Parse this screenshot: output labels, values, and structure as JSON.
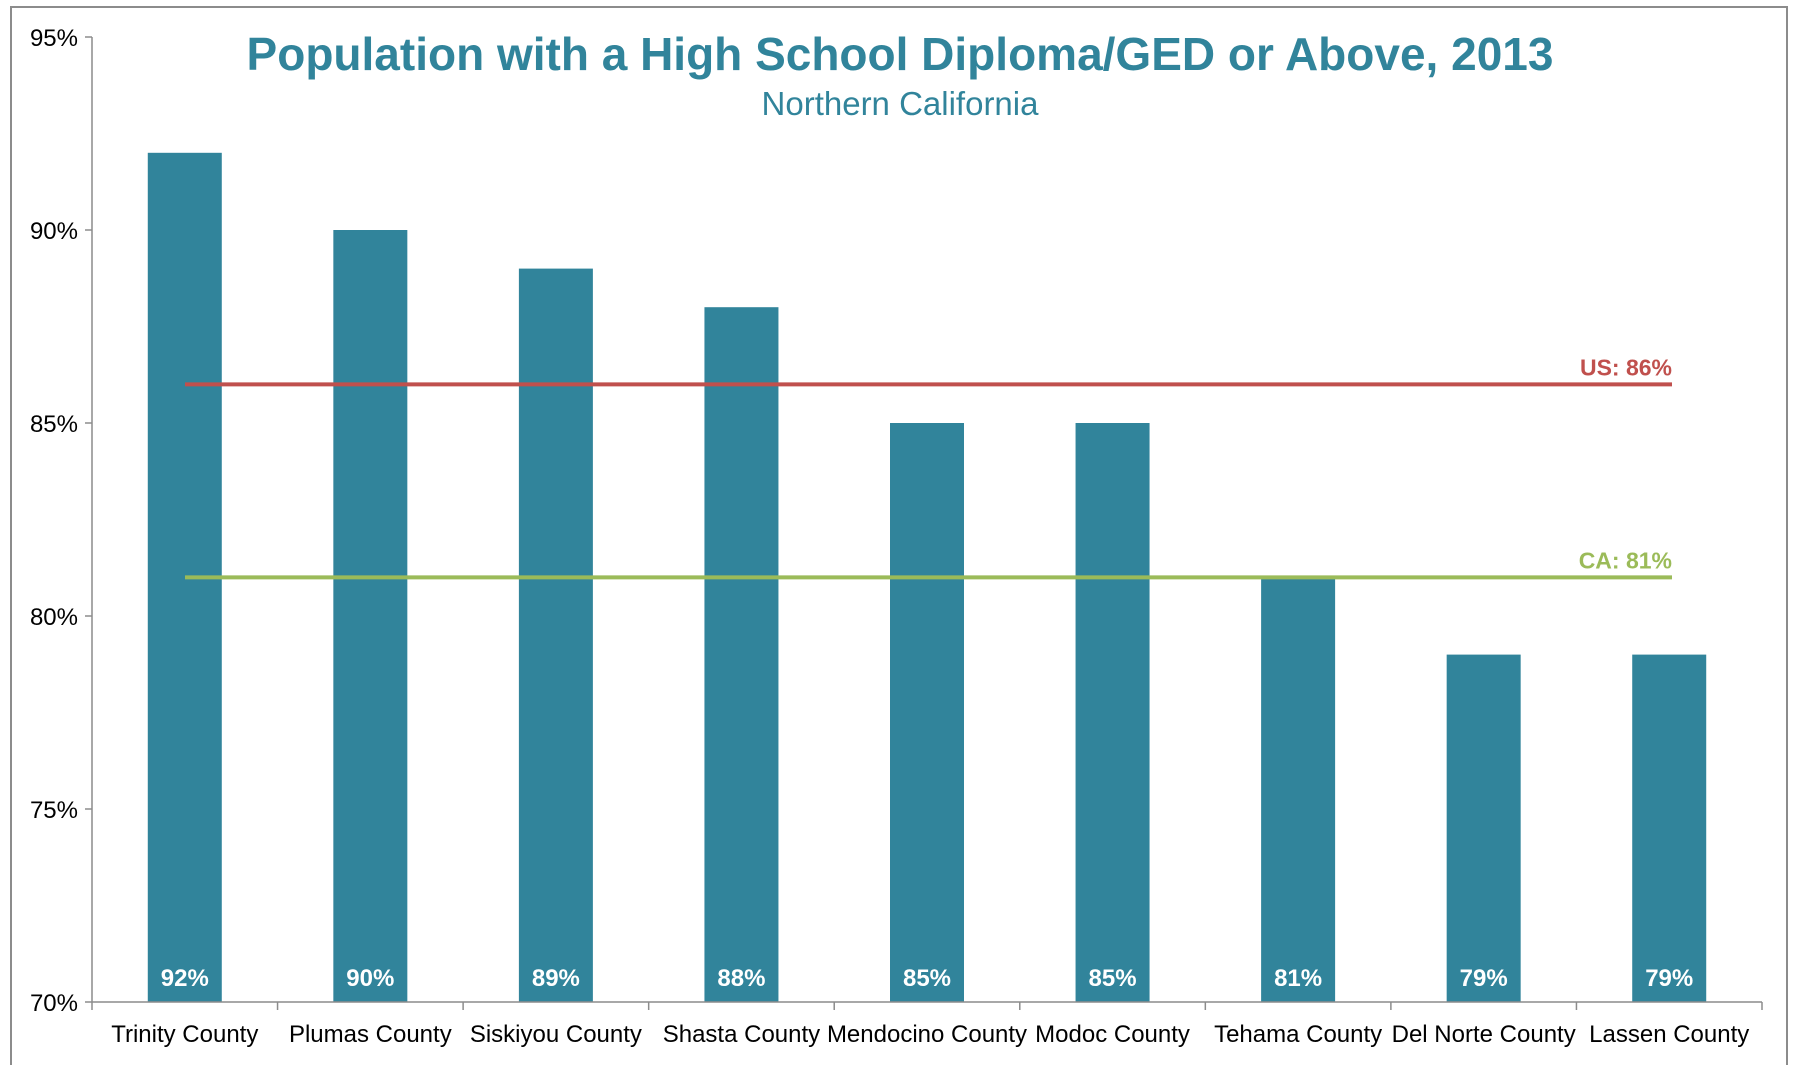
{
  "chart_data": {
    "type": "bar",
    "title": "Population with a High School Diploma/GED or Above, 2013",
    "subtitle": "Northern California",
    "categories": [
      "Trinity County",
      "Plumas County",
      "Siskiyou County",
      "Shasta County",
      "Mendocino County",
      "Modoc County",
      "Tehama County",
      "Del Norte County",
      "Lassen County"
    ],
    "values": [
      92,
      90,
      89,
      88,
      85,
      85,
      81,
      79,
      79
    ],
    "data_labels": [
      "92%",
      "90%",
      "89%",
      "88%",
      "85%",
      "85%",
      "81%",
      "79%",
      "79%"
    ],
    "ylim": [
      70,
      95
    ],
    "y_ticks": [
      70,
      75,
      80,
      85,
      90,
      95
    ],
    "y_tick_labels": [
      "70%",
      "75%",
      "80%",
      "85%",
      "90%",
      "95%"
    ],
    "grid": false,
    "reference_lines": [
      {
        "label": "US: 86%",
        "value": 86,
        "color": "#c0504d"
      },
      {
        "label": "CA: 81%",
        "value": 81,
        "color": "#9bbb59"
      }
    ],
    "colors": {
      "bar": "#31849b",
      "title": "#31849b",
      "subtitle": "#31849b"
    }
  }
}
